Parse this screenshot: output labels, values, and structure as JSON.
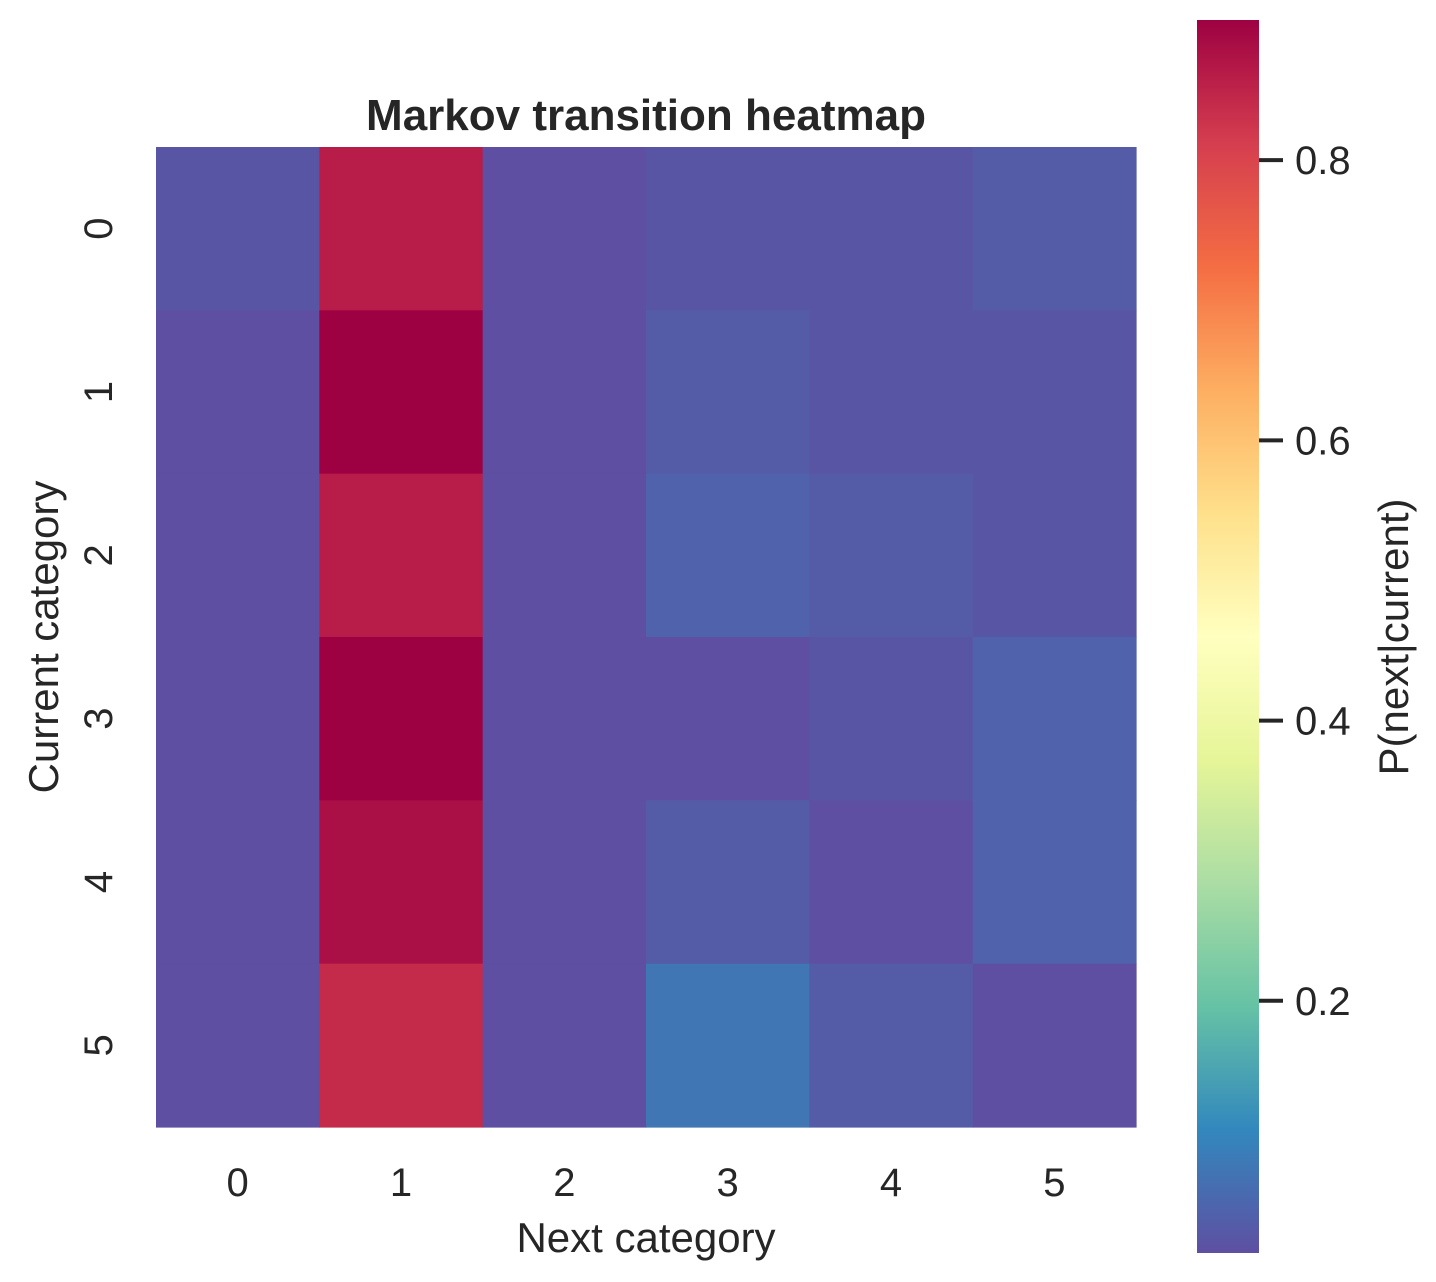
{
  "chart_data": {
    "type": "heatmap",
    "title": "Markov transition heatmap",
    "xlabel": "Next category",
    "ylabel": "Current category",
    "x_categories": [
      "0",
      "1",
      "2",
      "3",
      "4",
      "5"
    ],
    "y_categories": [
      "0",
      "1",
      "2",
      "3",
      "4",
      "5"
    ],
    "values": [
      [
        0.03,
        0.86,
        0.02,
        0.03,
        0.03,
        0.04
      ],
      [
        0.02,
        0.9,
        0.02,
        0.04,
        0.03,
        0.03
      ],
      [
        0.02,
        0.86,
        0.02,
        0.05,
        0.04,
        0.03
      ],
      [
        0.02,
        0.9,
        0.02,
        0.02,
        0.03,
        0.05
      ],
      [
        0.02,
        0.88,
        0.02,
        0.04,
        0.02,
        0.05
      ],
      [
        0.02,
        0.84,
        0.02,
        0.08,
        0.04,
        0.02
      ]
    ],
    "colormap": "Spectral_r",
    "colormap_stops": [
      "#5e4fa2",
      "#3288bd",
      "#66c2a5",
      "#abdda4",
      "#e6f598",
      "#ffffbf",
      "#fee08b",
      "#fdae61",
      "#f46d43",
      "#d53e4f",
      "#9e0142"
    ],
    "color_range": [
      0.02,
      0.9
    ],
    "colorbar": {
      "label": "P(next|current)",
      "ticks": [
        0.2,
        0.4,
        0.6,
        0.8
      ],
      "tick_labels": [
        "0.2",
        "0.4",
        "0.6",
        "0.8"
      ]
    },
    "grid": false
  }
}
